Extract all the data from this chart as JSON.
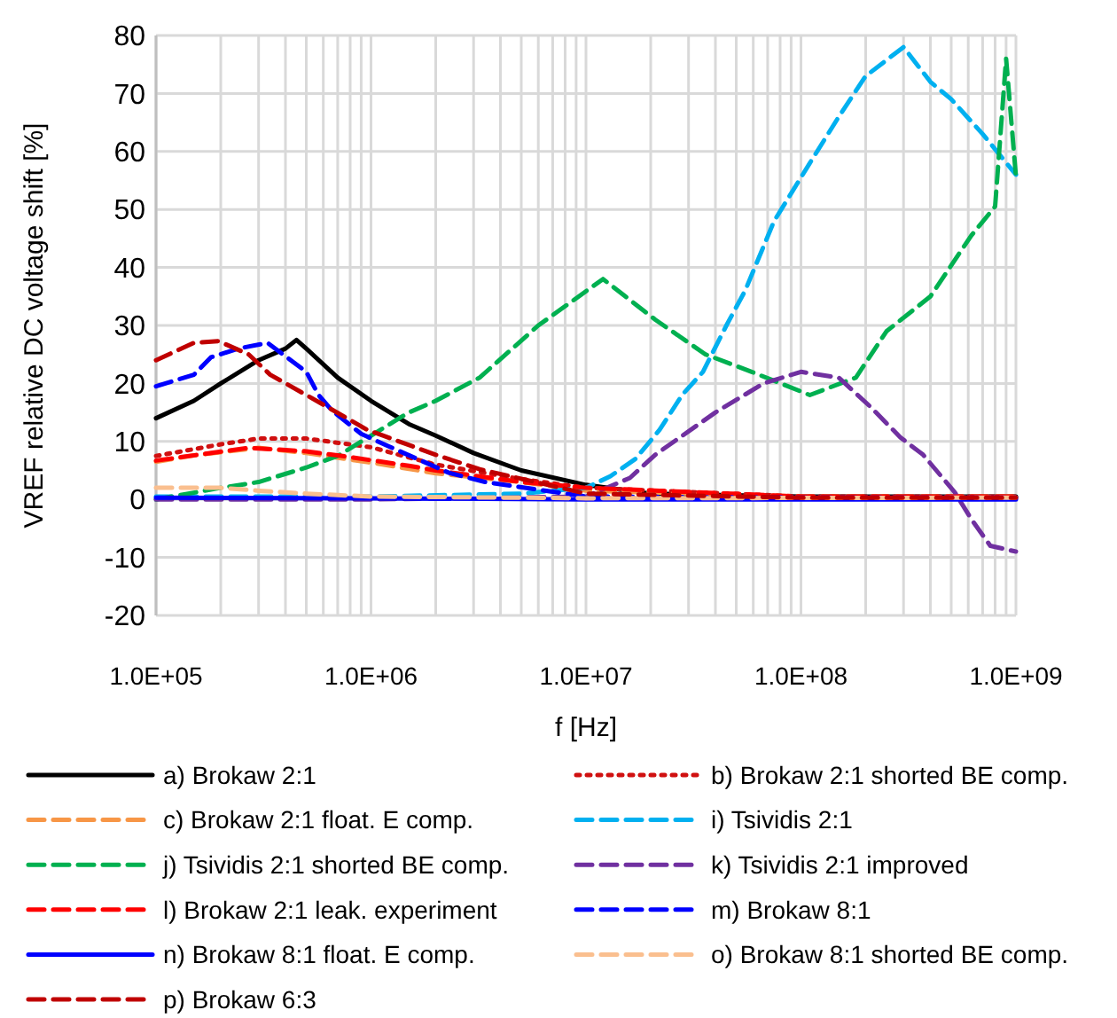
{
  "chart_data": {
    "type": "line",
    "xlabel": "f [Hz]",
    "ylabel": "VREF relative DC voltage shift [%]",
    "log": "x",
    "grid": true,
    "legend": "bottom",
    "xlim": [
      100000,
      1000000000
    ],
    "xticks": [
      {
        "value": 100000,
        "label": "1.0E+05"
      },
      {
        "value": 1000000,
        "label": "1.0E+06"
      },
      {
        "value": 10000000,
        "label": "1.0E+07"
      },
      {
        "value": 100000000,
        "label": "1.0E+08"
      },
      {
        "value": 1000000000,
        "label": "1.0E+09"
      }
    ],
    "ylim": [
      -20,
      80
    ],
    "yticks": [
      -20,
      -10,
      0,
      10,
      20,
      30,
      40,
      50,
      60,
      70,
      80
    ],
    "series": [
      {
        "name": "a) Brokaw 2:1",
        "color": "#000000",
        "line_style": "solid",
        "x": [
          100000,
          150000,
          200000,
          300000,
          400000,
          450000,
          500000,
          700000,
          1000000,
          1500000,
          2000000,
          3000000,
          5000000,
          10000000,
          20000000,
          100000000,
          1000000000
        ],
        "values": [
          14,
          17,
          20,
          24,
          26,
          27.5,
          26,
          21,
          17,
          13,
          11,
          8,
          5,
          2.5,
          1,
          0.5,
          0.5
        ]
      },
      {
        "name": "b) Brokaw 2:1 shorted BE comp.",
        "color": "#d01010",
        "line_style": "dotted",
        "x": [
          100000,
          200000,
          300000,
          500000,
          1000000,
          2000000,
          5000000,
          10000000,
          100000000,
          1000000000
        ],
        "values": [
          7.5,
          9.5,
          10.5,
          10.5,
          9,
          6,
          3.5,
          2,
          0.5,
          0.5
        ]
      },
      {
        "name": "c) Brokaw 2:1 float. E comp.",
        "color": "#f79646",
        "line_style": "dashed",
        "x": [
          100000,
          150000,
          300000,
          500000,
          1100000,
          2000000,
          5000000,
          10000000,
          100000000,
          1000000000
        ],
        "values": [
          6.5,
          7.6,
          8.9,
          8,
          6.1,
          4.5,
          3,
          1.5,
          0.5,
          0.5
        ]
      },
      {
        "name": "i) Tsividis 2:1",
        "color": "#00b0f0",
        "line_style": "dashed",
        "x": [
          100000,
          1000000,
          5000000,
          10000000,
          13000000,
          17000000,
          22000000,
          28000000,
          35000000,
          45000000,
          55000000,
          75000000,
          110000000,
          150000000,
          200000000,
          300000000,
          400000000,
          500000000,
          700000000,
          1000000000
        ],
        "values": [
          0.5,
          0.5,
          1,
          2,
          4,
          7,
          12,
          18,
          22,
          30,
          36,
          48,
          58,
          66,
          73,
          78,
          72,
          69,
          63,
          56
        ]
      },
      {
        "name": "j) Tsividis 2:1 shorted BE comp.",
        "color": "#00b050",
        "line_style": "dashed",
        "x": [
          100000,
          200000,
          300000,
          500000,
          700000,
          1000000,
          1500000,
          2000000,
          3200000,
          6000000,
          12000000,
          21000000,
          36000000,
          59000000,
          110000000,
          180000000,
          250000000,
          400000000,
          620000000,
          800000000,
          900000000,
          1000000000
        ],
        "values": [
          0,
          2,
          3,
          5.5,
          7.5,
          11,
          15,
          17,
          21,
          30,
          38,
          31,
          25,
          22,
          18,
          21,
          29,
          35,
          45.5,
          50.5,
          76,
          55.7
        ]
      },
      {
        "name": "k) Tsividis 2:1 improved",
        "color": "#7030a0",
        "line_style": "dashed",
        "x": [
          100000,
          1000000,
          10000000,
          16000000,
          21000000,
          40000000,
          67000000,
          100000000,
          150000000,
          210000000,
          290000000,
          370000000,
          520000000,
          620000000,
          760000000,
          1000000000
        ],
        "values": [
          0,
          0,
          0.5,
          3.7,
          7.7,
          15,
          20,
          22,
          21,
          16,
          10.7,
          7.7,
          1.2,
          -3.4,
          -8,
          -9
        ]
      },
      {
        "name": "l) Brokaw 2:1 leak. experiment",
        "color": "#ff0000",
        "line_style": "dashed",
        "x": [
          100000,
          270000,
          500000,
          800000,
          1500000,
          2000000,
          5000000,
          10000000,
          100000000,
          1000000000
        ],
        "values": [
          6.7,
          8.9,
          8.3,
          7.3,
          5.8,
          5,
          3,
          2,
          0.5,
          0.5
        ]
      },
      {
        "name": "m) Brokaw 8:1",
        "color": "#0000ff",
        "line_style": "dashed",
        "x": [
          100000,
          150000,
          180000,
          240000,
          330000,
          500000,
          570000,
          660000,
          900000,
          1200000,
          2300000,
          3400000,
          10000000,
          100000000,
          1000000000
        ],
        "values": [
          19.5,
          21.5,
          24.5,
          26,
          27,
          22,
          18,
          15.3,
          11.3,
          9.2,
          4.6,
          3,
          0.5,
          0.3,
          0.3
        ]
      },
      {
        "name": "n) Brokaw 8:1 float. E comp.",
        "color": "#0000ff",
        "line_style": "solid",
        "x": [
          100000,
          1000000,
          10000000,
          100000000,
          1000000000
        ],
        "values": [
          0.3,
          0.2,
          0,
          0,
          0
        ]
      },
      {
        "name": "o) Brokaw 8:1 shorted BE comp.",
        "color": "#fabf8f",
        "line_style": "dashed",
        "x": [
          100000,
          200000,
          300000,
          500000,
          1000000,
          10000000,
          1000000000
        ],
        "values": [
          2,
          2,
          1.5,
          1,
          0.5,
          0.2,
          0.3
        ]
      },
      {
        "name": "p) Brokaw 6:3",
        "color": "#c00000",
        "line_style": "dashed",
        "x": [
          100000,
          150000,
          195000,
          270000,
          340000,
          500000,
          650000,
          960000,
          2000000,
          3200000,
          10000000,
          100000000,
          1000000000
        ],
        "values": [
          24,
          27,
          27.3,
          25,
          21.5,
          18,
          15.6,
          12,
          7.7,
          5.2,
          1,
          0.3,
          0.3
        ]
      }
    ]
  }
}
